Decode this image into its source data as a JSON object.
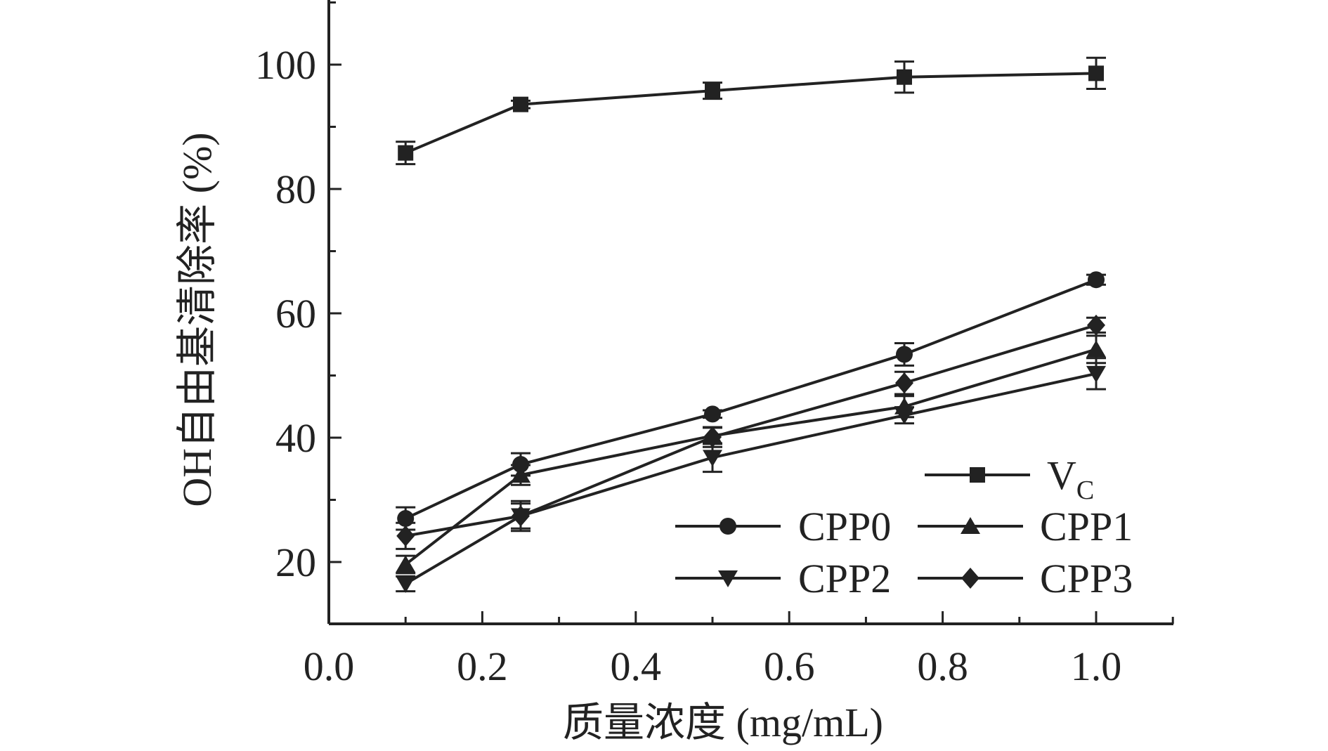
{
  "chart_data": {
    "type": "line",
    "title": "",
    "xlabel": "质量浓度 (mg/mL)",
    "ylabel": "OH自由基清除率 (%)",
    "xlim": [
      0.0,
      1.1
    ],
    "ylim": [
      10,
      110
    ],
    "x_ticks": [
      0.0,
      0.2,
      0.4,
      0.6,
      0.8,
      1.0
    ],
    "x_tick_labels": [
      "0.0",
      "0.2",
      "0.4",
      "0.6",
      "0.8",
      "1.0"
    ],
    "y_ticks": [
      20,
      40,
      60,
      80,
      100
    ],
    "y_tick_labels": [
      "20",
      "40",
      "60",
      "80",
      "100"
    ],
    "x": [
      0.1,
      0.25,
      0.5,
      0.75,
      1.0
    ],
    "series": [
      {
        "name": "V",
        "name_sub": "C",
        "marker": "square",
        "values": [
          85.8,
          93.6,
          95.8,
          98.0,
          98.6
        ],
        "errors": [
          1.8,
          0.6,
          1.3,
          2.5,
          2.5
        ]
      },
      {
        "name": "CPP0",
        "marker": "circle",
        "values": [
          27.0,
          35.7,
          43.8,
          53.4,
          65.4
        ],
        "errors": [
          1.8,
          1.8,
          0.6,
          1.8,
          0.8
        ]
      },
      {
        "name": "CPP1",
        "marker": "triangle-up",
        "values": [
          19.6,
          34.0,
          40.3,
          45.0,
          54.2
        ],
        "errors": [
          1.4,
          1.6,
          1.3,
          1.7,
          2.2
        ]
      },
      {
        "name": "CPP2",
        "marker": "triangle-down",
        "values": [
          16.5,
          27.4,
          36.8,
          43.6,
          50.3
        ],
        "errors": [
          1.2,
          2.0,
          2.3,
          1.3,
          2.5
        ]
      },
      {
        "name": "CPP3",
        "marker": "diamond",
        "values": [
          24.2,
          27.4,
          40.1,
          48.8,
          58.1
        ],
        "errors": [
          2.1,
          2.4,
          1.6,
          1.8,
          1.2
        ]
      }
    ],
    "legend_position": "bottom-right",
    "line_color": "#222222"
  }
}
